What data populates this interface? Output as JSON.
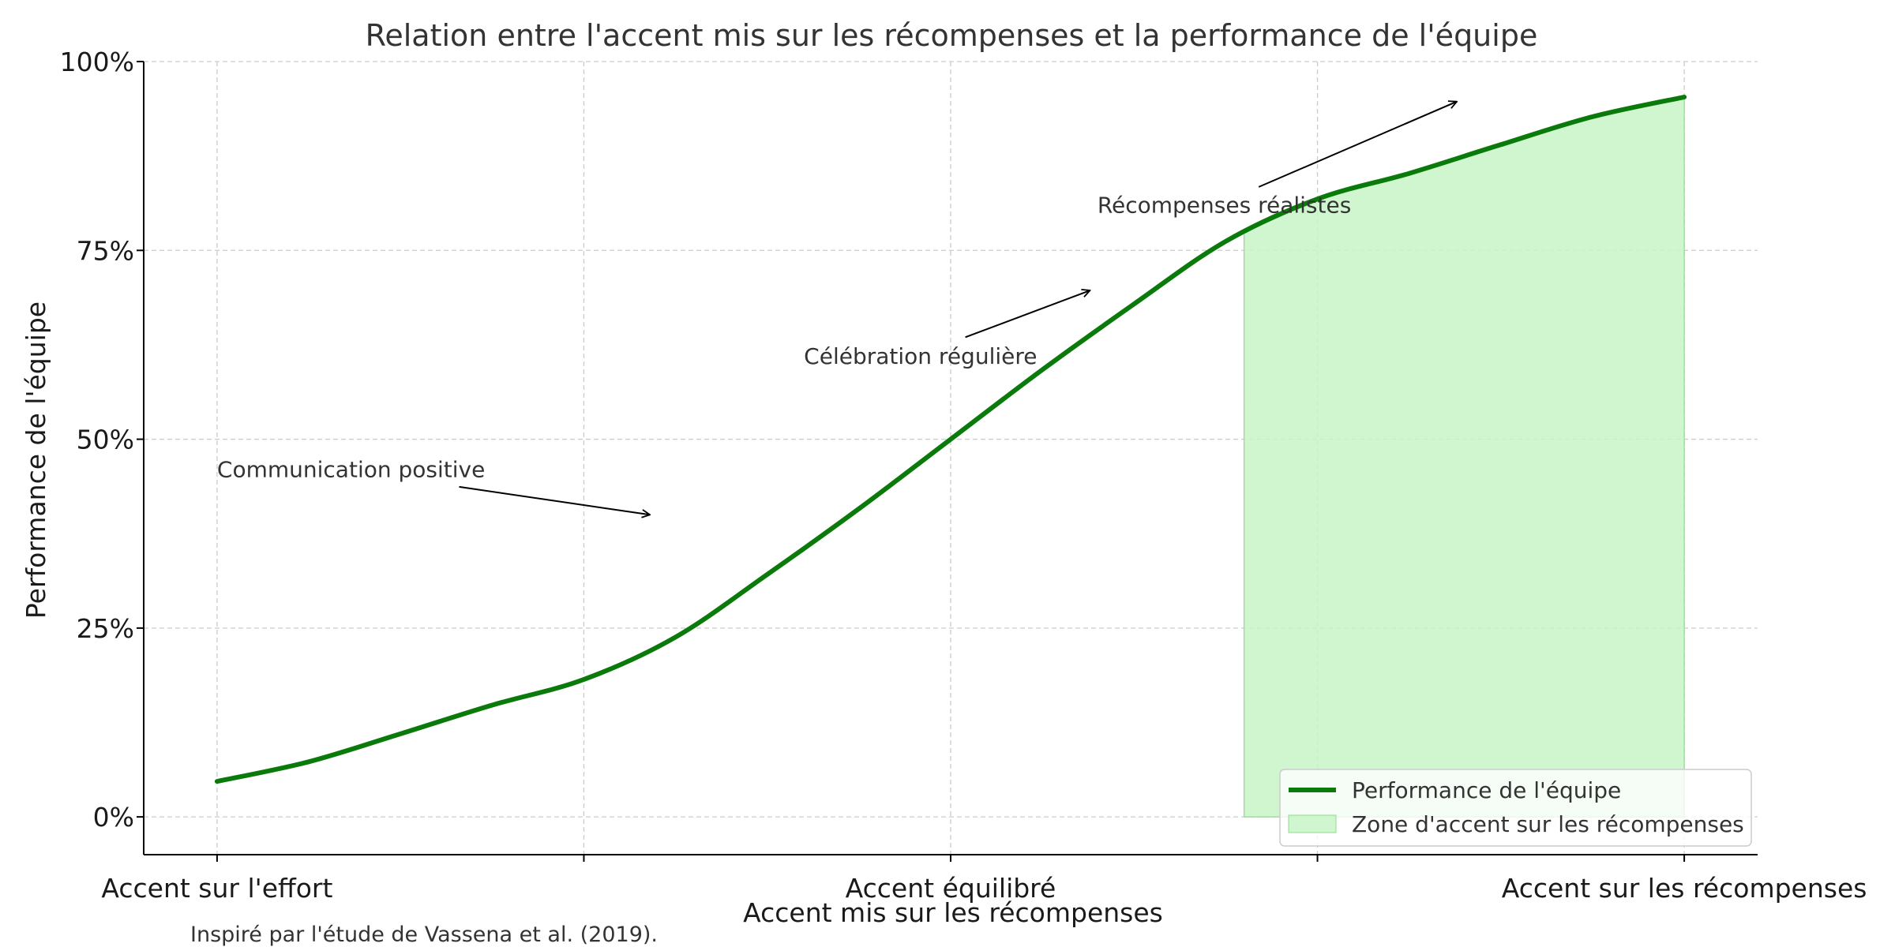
{
  "chart_data": {
    "type": "line",
    "title": "Relation entre l'accent mis sur les récompenses et la performance de l'équipe",
    "xlabel": "Accent mis sur les récompenses",
    "ylabel": "Performance de l'équipe",
    "x_tick_labels": [
      {
        "x": 0,
        "label": "Accent sur l'effort"
      },
      {
        "x": 1,
        "label": ""
      },
      {
        "x": 2,
        "label": "Accent équilibré"
      },
      {
        "x": 3,
        "label": ""
      },
      {
        "x": 4,
        "label": "Accent sur les récompenses"
      }
    ],
    "y_ticks": [
      0,
      0.25,
      0.5,
      0.75,
      1.0
    ],
    "y_tick_labels": [
      "0%",
      "25%",
      "50%",
      "75%",
      "100%"
    ],
    "xlim": [
      -0.2,
      4.2
    ],
    "ylim": [
      -0.05,
      1.0
    ],
    "grid": true,
    "series": [
      {
        "name": "Performance de l'équipe",
        "color": "#0a7a0a",
        "x": [
          0,
          0.25,
          0.5,
          0.75,
          1.0,
          1.25,
          1.5,
          1.75,
          2.0,
          2.25,
          2.5,
          2.75,
          3.0,
          3.25,
          3.5,
          3.75,
          4.0
        ],
        "y": [
          0.047,
          0.073,
          0.11,
          0.148,
          0.182,
          0.238,
          0.321,
          0.408,
          0.5,
          0.592,
          0.679,
          0.762,
          0.818,
          0.852,
          0.89,
          0.927,
          0.953
        ]
      }
    ],
    "shaded_region": {
      "name": "Zone d'accent sur les récompenses",
      "x_start": 2.8,
      "x_end": 4.0,
      "color": "#c8f5c8"
    },
    "annotations": [
      {
        "text": "Communication positive",
        "text_x": 0,
        "text_y": 0.45,
        "arrow_from": [
          0.66,
          0.437
        ],
        "arrow_to": [
          1.18,
          0.4
        ]
      },
      {
        "text": "Célébration régulière",
        "text_x": 1.6,
        "text_y": 0.6,
        "arrow_from": [
          2.04,
          0.635
        ],
        "arrow_to": [
          2.38,
          0.697
        ]
      },
      {
        "text": "Récompenses réalistes",
        "text_x": 2.4,
        "text_y": 0.8,
        "arrow_from": [
          2.84,
          0.834
        ],
        "arrow_to": [
          3.38,
          0.947
        ]
      }
    ],
    "legend": {
      "placement": "lower-right",
      "entries": [
        "Performance de l'équipe",
        "Zone d'accent sur les récompenses"
      ]
    },
    "source_note": "Inspiré par l'étude de Vassena et al. (2019)."
  }
}
